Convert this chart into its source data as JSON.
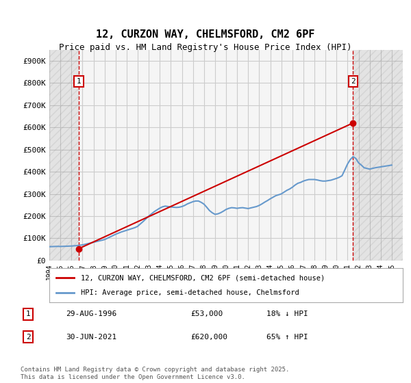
{
  "title": "12, CURZON WAY, CHELMSFORD, CM2 6PF",
  "subtitle": "Price paid vs. HM Land Registry's House Price Index (HPI)",
  "ylabel_ticks": [
    "£0",
    "£100K",
    "£200K",
    "£300K",
    "£400K",
    "£500K",
    "£600K",
    "£700K",
    "£800K",
    "£900K"
  ],
  "ytick_values": [
    0,
    100000,
    200000,
    300000,
    400000,
    500000,
    600000,
    700000,
    800000,
    900000
  ],
  "ylim": [
    0,
    950000
  ],
  "xlim_start": 1994,
  "xlim_end": 2026,
  "xticks": [
    1994,
    1995,
    1996,
    1997,
    1998,
    1999,
    2000,
    2001,
    2002,
    2003,
    2004,
    2005,
    2006,
    2007,
    2008,
    2009,
    2010,
    2011,
    2012,
    2013,
    2014,
    2015,
    2016,
    2017,
    2018,
    2019,
    2020,
    2021,
    2022,
    2023,
    2024,
    2025
  ],
  "transaction1": {
    "date_decimal": 1996.66,
    "price": 53000,
    "label": "1",
    "date_str": "29-AUG-1996",
    "price_str": "£53,000",
    "hpi_str": "18% ↓ HPI"
  },
  "transaction2": {
    "date_decimal": 2021.5,
    "price": 620000,
    "label": "2",
    "date_str": "30-JUN-2021",
    "price_str": "£620,000",
    "hpi_str": "65% ↑ HPI"
  },
  "hpi_line_color": "#6699cc",
  "price_line_color": "#cc0000",
  "vline_color": "#cc0000",
  "background_color": "#ffffff",
  "plot_bg_color": "#f5f5f5",
  "grid_color": "#cccccc",
  "hatch_color": "#cccccc",
  "legend_label_price": "12, CURZON WAY, CHELMSFORD, CM2 6PF (semi-detached house)",
  "legend_label_hpi": "HPI: Average price, semi-detached house, Chelmsford",
  "footnote": "Contains HM Land Registry data © Crown copyright and database right 2025.\nThis data is licensed under the Open Government Licence v3.0.",
  "hpi_data": {
    "years": [
      1994.0,
      1994.25,
      1994.5,
      1994.75,
      1995.0,
      1995.25,
      1995.5,
      1995.75,
      1996.0,
      1996.25,
      1996.5,
      1996.75,
      1997.0,
      1997.25,
      1997.5,
      1997.75,
      1998.0,
      1998.25,
      1998.5,
      1998.75,
      1999.0,
      1999.25,
      1999.5,
      1999.75,
      2000.0,
      2000.25,
      2000.5,
      2000.75,
      2001.0,
      2001.25,
      2001.5,
      2001.75,
      2002.0,
      2002.25,
      2002.5,
      2002.75,
      2003.0,
      2003.25,
      2003.5,
      2003.75,
      2004.0,
      2004.25,
      2004.5,
      2004.75,
      2005.0,
      2005.25,
      2005.5,
      2005.75,
      2006.0,
      2006.25,
      2006.5,
      2006.75,
      2007.0,
      2007.25,
      2007.5,
      2007.75,
      2008.0,
      2008.25,
      2008.5,
      2008.75,
      2009.0,
      2009.25,
      2009.5,
      2009.75,
      2010.0,
      2010.25,
      2010.5,
      2010.75,
      2011.0,
      2011.25,
      2011.5,
      2011.75,
      2012.0,
      2012.25,
      2012.5,
      2012.75,
      2013.0,
      2013.25,
      2013.5,
      2013.75,
      2014.0,
      2014.25,
      2014.5,
      2014.75,
      2015.0,
      2015.25,
      2015.5,
      2015.75,
      2016.0,
      2016.25,
      2016.5,
      2016.75,
      2017.0,
      2017.25,
      2017.5,
      2017.75,
      2018.0,
      2018.25,
      2018.5,
      2018.75,
      2019.0,
      2019.25,
      2019.5,
      2019.75,
      2020.0,
      2020.25,
      2020.5,
      2020.75,
      2021.0,
      2021.25,
      2021.5,
      2021.75,
      2022.0,
      2022.25,
      2022.5,
      2022.75,
      2023.0,
      2023.25,
      2023.5,
      2023.75,
      2024.0,
      2024.25,
      2024.5,
      2024.75,
      2025.0
    ],
    "values": [
      62000,
      62500,
      63000,
      63500,
      63000,
      63500,
      64000,
      64500,
      65000,
      66000,
      67000,
      68500,
      70000,
      73000,
      76000,
      79000,
      82000,
      85000,
      88000,
      91000,
      94000,
      100000,
      106000,
      112000,
      118000,
      123000,
      128000,
      132000,
      136000,
      140000,
      144000,
      148000,
      154000,
      165000,
      176000,
      188000,
      200000,
      210000,
      220000,
      228000,
      236000,
      242000,
      245000,
      243000,
      241000,
      240000,
      239000,
      240000,
      243000,
      248000,
      255000,
      260000,
      265000,
      268000,
      268000,
      262000,
      254000,
      240000,
      225000,
      215000,
      208000,
      210000,
      215000,
      222000,
      230000,
      235000,
      238000,
      237000,
      235000,
      237000,
      238000,
      236000,
      234000,
      237000,
      240000,
      243000,
      248000,
      255000,
      263000,
      270000,
      278000,
      285000,
      292000,
      296000,
      300000,
      308000,
      316000,
      322000,
      330000,
      340000,
      348000,
      352000,
      358000,
      362000,
      365000,
      365000,
      365000,
      363000,
      360000,
      358000,
      358000,
      360000,
      362000,
      366000,
      370000,
      375000,
      382000,
      408000,
      435000,
      455000,
      468000,
      460000,
      440000,
      430000,
      418000,
      415000,
      412000,
      415000,
      418000,
      420000,
      422000,
      424000,
      426000,
      428000,
      430000
    ]
  },
  "price_line_data": {
    "years": [
      1996.66,
      2021.5
    ],
    "values": [
      53000,
      620000
    ]
  }
}
